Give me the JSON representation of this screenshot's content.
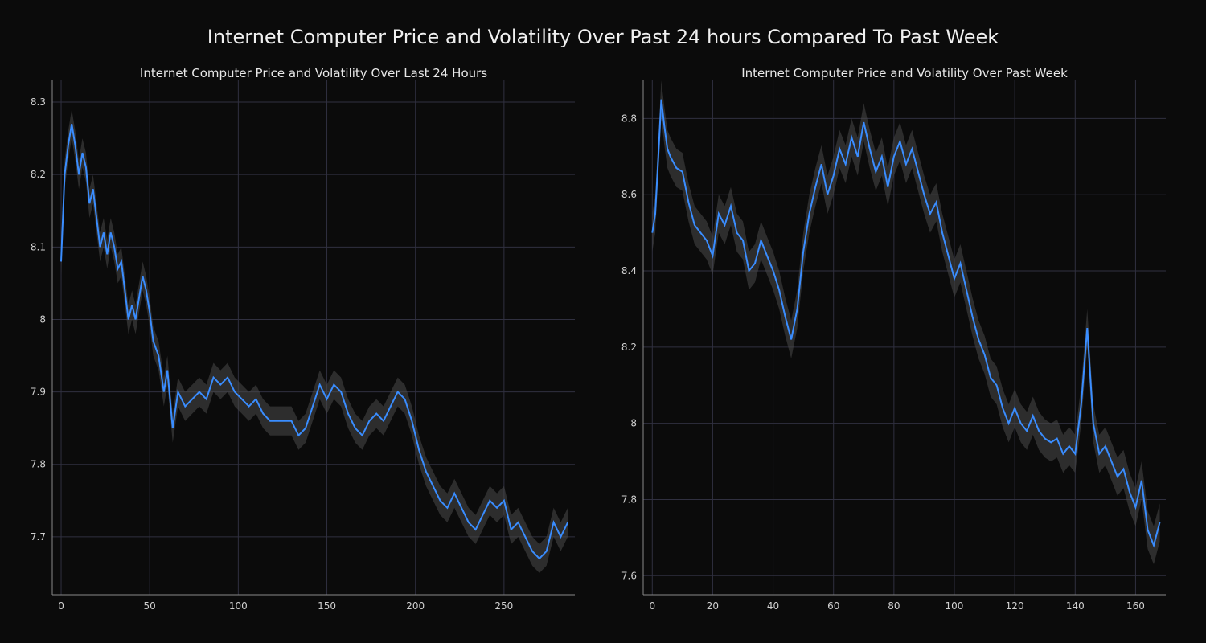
{
  "figure": {
    "suptitle": "Internet Computer Price and Volatility Over Past 24 hours Compared To Past Week",
    "suptitle_fontsize": 24,
    "background_color": "#0b0b0b",
    "text_color": "#e8e8e8",
    "grid_color": "#303040",
    "axis_color": "#888888"
  },
  "left_chart": {
    "title": "Internet Computer Price and Volatility Over Last 24 Hours",
    "title_fontsize": 15,
    "type": "line",
    "line_color": "#3a8dff",
    "band_color": "#4a4a4a",
    "band_opacity": 0.55,
    "line_width": 2,
    "xlim": [
      -5,
      290
    ],
    "ylim": [
      7.62,
      8.33
    ],
    "xticks": [
      0,
      50,
      100,
      150,
      200,
      250
    ],
    "yticks": [
      7.7,
      7.8,
      7.9,
      8.0,
      8.1,
      8.2,
      8.3
    ],
    "ytick_labels": [
      "7.7",
      "7.8",
      "7.9",
      "8",
      "8.1",
      "8.2",
      "8.3"
    ],
    "ytick_decimals_trim": true,
    "x": [
      0,
      2,
      4,
      6,
      8,
      10,
      12,
      14,
      16,
      18,
      20,
      22,
      24,
      26,
      28,
      30,
      32,
      34,
      36,
      38,
      40,
      42,
      44,
      46,
      48,
      50,
      52,
      55,
      58,
      60,
      63,
      66,
      70,
      74,
      78,
      82,
      86,
      90,
      94,
      98,
      102,
      106,
      110,
      114,
      118,
      122,
      126,
      130,
      134,
      138,
      142,
      146,
      150,
      154,
      158,
      162,
      166,
      170,
      174,
      178,
      182,
      186,
      190,
      194,
      198,
      202,
      206,
      210,
      214,
      218,
      222,
      226,
      230,
      234,
      238,
      242,
      246,
      250,
      254,
      258,
      262,
      266,
      270,
      274,
      278,
      282,
      286
    ],
    "y": [
      8.08,
      8.2,
      8.24,
      8.27,
      8.24,
      8.2,
      8.23,
      8.21,
      8.16,
      8.18,
      8.14,
      8.1,
      8.12,
      8.09,
      8.12,
      8.1,
      8.07,
      8.08,
      8.04,
      8.0,
      8.02,
      8.0,
      8.03,
      8.06,
      8.04,
      8.01,
      7.97,
      7.95,
      7.9,
      7.93,
      7.85,
      7.9,
      7.88,
      7.89,
      7.9,
      7.89,
      7.92,
      7.91,
      7.92,
      7.9,
      7.89,
      7.88,
      7.89,
      7.87,
      7.86,
      7.86,
      7.86,
      7.86,
      7.84,
      7.85,
      7.88,
      7.91,
      7.89,
      7.91,
      7.9,
      7.87,
      7.85,
      7.84,
      7.86,
      7.87,
      7.86,
      7.88,
      7.9,
      7.89,
      7.86,
      7.82,
      7.79,
      7.77,
      7.75,
      7.74,
      7.76,
      7.74,
      7.72,
      7.71,
      7.73,
      7.75,
      7.74,
      7.75,
      7.71,
      7.72,
      7.7,
      7.68,
      7.67,
      7.68,
      7.72,
      7.7,
      7.72
    ],
    "band_half": 0.02
  },
  "right_chart": {
    "title": "Internet Computer Price and Volatility Over Past Week",
    "title_fontsize": 15,
    "type": "line",
    "line_color": "#3a8dff",
    "band_color": "#4a4a4a",
    "band_opacity": 0.55,
    "line_width": 2,
    "xlim": [
      -3,
      170
    ],
    "ylim": [
      7.55,
      8.9
    ],
    "xticks": [
      0,
      20,
      40,
      60,
      80,
      100,
      120,
      140,
      160
    ],
    "yticks": [
      7.6,
      7.8,
      8.0,
      8.2,
      8.4,
      8.6,
      8.8
    ],
    "ytick_labels": [
      "7.6",
      "7.8",
      "8",
      "8.2",
      "8.4",
      "8.6",
      "8.8"
    ],
    "ytick_decimals_trim": true,
    "x": [
      0,
      1,
      2,
      3,
      4,
      5,
      6,
      8,
      10,
      12,
      14,
      16,
      18,
      20,
      22,
      24,
      26,
      28,
      30,
      32,
      34,
      36,
      38,
      40,
      42,
      44,
      46,
      48,
      50,
      52,
      54,
      56,
      58,
      60,
      62,
      64,
      66,
      68,
      70,
      72,
      74,
      76,
      78,
      80,
      82,
      84,
      86,
      88,
      90,
      92,
      94,
      96,
      98,
      100,
      102,
      104,
      106,
      108,
      110,
      112,
      114,
      116,
      118,
      120,
      122,
      124,
      126,
      128,
      130,
      132,
      134,
      136,
      138,
      140,
      142,
      144,
      146,
      148,
      150,
      152,
      154,
      156,
      158,
      160,
      162,
      164,
      166,
      168
    ],
    "y": [
      8.5,
      8.55,
      8.7,
      8.85,
      8.78,
      8.72,
      8.7,
      8.67,
      8.66,
      8.58,
      8.52,
      8.5,
      8.48,
      8.44,
      8.55,
      8.52,
      8.57,
      8.5,
      8.48,
      8.4,
      8.42,
      8.48,
      8.44,
      8.4,
      8.35,
      8.28,
      8.22,
      8.3,
      8.45,
      8.55,
      8.62,
      8.68,
      8.6,
      8.65,
      8.72,
      8.68,
      8.75,
      8.7,
      8.79,
      8.72,
      8.66,
      8.7,
      8.62,
      8.7,
      8.74,
      8.68,
      8.72,
      8.66,
      8.6,
      8.55,
      8.58,
      8.5,
      8.44,
      8.38,
      8.42,
      8.35,
      8.28,
      8.22,
      8.18,
      8.12,
      8.1,
      8.04,
      8.0,
      8.04,
      8.0,
      7.98,
      8.02,
      7.98,
      7.96,
      7.95,
      7.96,
      7.92,
      7.94,
      7.92,
      8.05,
      8.25,
      8.0,
      7.92,
      7.94,
      7.9,
      7.86,
      7.88,
      7.82,
      7.78,
      7.85,
      7.72,
      7.68,
      7.74
    ],
    "band_half": 0.05
  }
}
